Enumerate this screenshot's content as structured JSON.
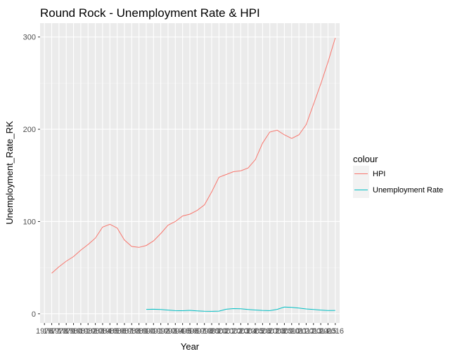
{
  "chart_data": {
    "type": "line",
    "title": "Round Rock - Unemployment Rate & HPI",
    "xlabel": "Year",
    "ylabel": "Unemployment_Rate_RK",
    "x_tick_labels": [
      "1976",
      "1977",
      "1978",
      "1979",
      "1980",
      "1981",
      "1982",
      "1983",
      "1984",
      "1985",
      "1986",
      "1987",
      "1988",
      "1989",
      "1990",
      "1991",
      "1992",
      "1993",
      "1994",
      "1995",
      "1996",
      "1997",
      "1998",
      "1999",
      "2000",
      "2001",
      "2002",
      "2003",
      "2004",
      "2005",
      "2006",
      "2007",
      "2008",
      "2009",
      "2010",
      "2011",
      "2012",
      "2013",
      "2014",
      "2015",
      "2016"
    ],
    "y_ticks": [
      0,
      100,
      200,
      300
    ],
    "xlim": [
      1975.4,
      2016.6
    ],
    "ylim": [
      -10,
      315
    ],
    "grid": true,
    "legend": {
      "title": "colour",
      "position": "right",
      "entries": [
        "HPI",
        "Unemployment Rate"
      ]
    },
    "series": [
      {
        "name": "HPI",
        "color": "#f8766d",
        "x": [
          1977,
          1978,
          1979,
          1980,
          1981,
          1982,
          1983,
          1984,
          1985,
          1986,
          1987,
          1988,
          1989,
          1990,
          1991,
          1992,
          1993,
          1994,
          1995,
          1996,
          1997,
          1998,
          1999,
          2000,
          2001,
          2002,
          2003,
          2004,
          2005,
          2006,
          2007,
          2008,
          2009,
          2010,
          2011,
          2012,
          2013,
          2014,
          2015,
          2016
        ],
        "values": [
          44,
          51,
          57,
          62,
          69,
          75,
          82,
          94,
          97,
          93,
          80,
          73,
          72,
          74,
          79,
          87,
          96,
          100,
          106,
          108,
          112,
          118,
          132,
          148,
          151,
          154,
          155,
          158,
          167,
          185,
          197,
          199,
          194,
          190,
          194,
          205,
          227,
          249,
          273,
          299
        ]
      },
      {
        "name": "Unemployment Rate",
        "color": "#00bfc4",
        "x": [
          1990,
          1991,
          1992,
          1993,
          1994,
          1995,
          1996,
          1997,
          1998,
          1999,
          2000,
          2001,
          2002,
          2003,
          2004,
          2005,
          2006,
          2007,
          2008,
          2009,
          2010,
          2011,
          2012,
          2013,
          2014,
          2015,
          2016
        ],
        "values": [
          4.8,
          4.9,
          4.6,
          4.0,
          3.4,
          3.3,
          3.7,
          3.2,
          2.8,
          2.6,
          2.9,
          4.9,
          5.6,
          5.4,
          4.7,
          4.1,
          3.6,
          3.4,
          4.8,
          7.3,
          6.9,
          6.1,
          5.2,
          4.7,
          4.0,
          3.5,
          3.6
        ]
      }
    ]
  }
}
